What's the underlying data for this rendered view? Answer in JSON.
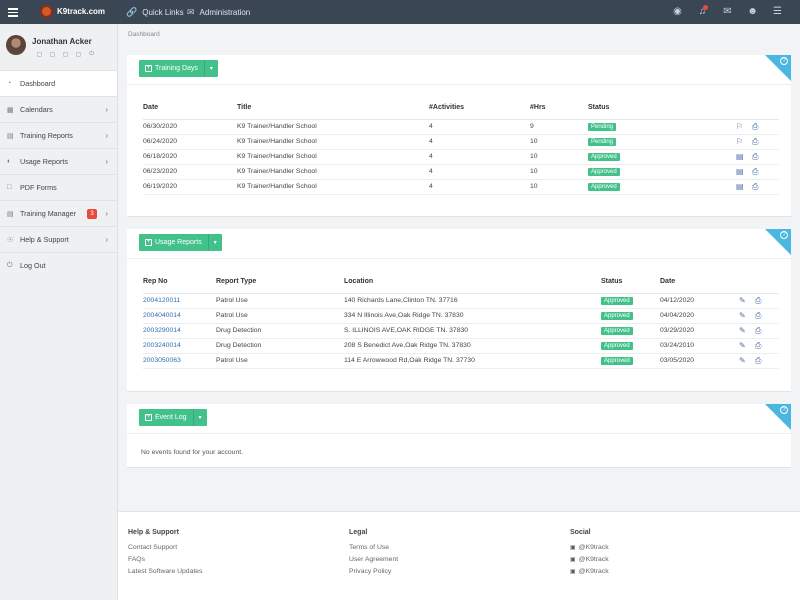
{
  "topbar": {
    "brand": "K9track.com",
    "nav": [
      {
        "label": "Quick Links",
        "icon": "link-icon"
      },
      {
        "label": "Administration",
        "icon": "megaphone-icon"
      }
    ]
  },
  "sidebar": {
    "user_name": "Jonathan Acker",
    "menu": [
      {
        "label": "Dashboard"
      },
      {
        "label": "Calendars"
      },
      {
        "label": "Training Reports"
      },
      {
        "label": "Usage Reports"
      },
      {
        "label": "PDF Forms"
      },
      {
        "label": "Training Manager",
        "count": "3"
      },
      {
        "label": "Help & Support"
      },
      {
        "label": "Log Out"
      }
    ]
  },
  "breadcrumb": "Dashboard",
  "training": {
    "button": "Training Days",
    "headers": [
      "Date",
      "Title",
      "#Activities",
      "#Hrs",
      "Status"
    ],
    "rows": [
      {
        "date": "06/30/2020",
        "title": "K9 Trainer/Handler School",
        "activities": "4",
        "hrs": "9",
        "status": "Pending"
      },
      {
        "date": "06/24/2020",
        "title": "K9 Trainer/Handler School",
        "activities": "4",
        "hrs": "10",
        "status": "Pending"
      },
      {
        "date": "06/18/2020",
        "title": "K9 Trainer/Handler School",
        "activities": "4",
        "hrs": "10",
        "status": "Approved"
      },
      {
        "date": "06/23/2020",
        "title": "K9 Trainer/Handler School",
        "activities": "4",
        "hrs": "10",
        "status": "Approved"
      },
      {
        "date": "06/19/2020",
        "title": "K9 Trainer/Handler School",
        "activities": "4",
        "hrs": "10",
        "status": "Approved"
      }
    ]
  },
  "usage": {
    "button": "Usage Reports",
    "headers": [
      "Rep No",
      "Report Type",
      "Location",
      "Status",
      "Date"
    ],
    "rows": [
      {
        "rep": "2004120011",
        "type": "Patrol Use",
        "location": "140 Richards Lane,Clinton TN. 37716",
        "status": "Approved",
        "date": "04/12/2020"
      },
      {
        "rep": "2004040014",
        "type": "Patrol Use",
        "location": "334 N Illinois Ave,Oak Ridge TN. 37830",
        "status": "Approved",
        "date": "04/04/2020"
      },
      {
        "rep": "2003290014",
        "type": "Drug Detection",
        "location": "S. ILLINOIS AVE,OAK RIDGE TN. 37830",
        "status": "Approved",
        "date": "03/29/2020"
      },
      {
        "rep": "2003240014",
        "type": "Drug Detection",
        "location": "208 S Benedict Ave,Oak Ridge TN. 37830",
        "status": "Approved",
        "date": "03/24/2010"
      },
      {
        "rep": "2003050063",
        "type": "Patrol Use",
        "location": "114 E Arrowwood Rd,Oak Ridge TN. 37730",
        "status": "Approved",
        "date": "03/05/2020"
      }
    ]
  },
  "events": {
    "button": "Event Log",
    "empty": "No events found for your account."
  },
  "footer": {
    "help": {
      "title": "Help & Support",
      "links": [
        "Contact Support",
        "FAQs",
        "Latest Software Updates"
      ]
    },
    "legal": {
      "title": "Legal",
      "links": [
        "Terms of Use",
        "User Agreement",
        "Privacy Policy"
      ]
    },
    "social": {
      "title": "Social",
      "links": [
        "@K9track",
        "@K9track",
        "@K9track"
      ]
    }
  }
}
